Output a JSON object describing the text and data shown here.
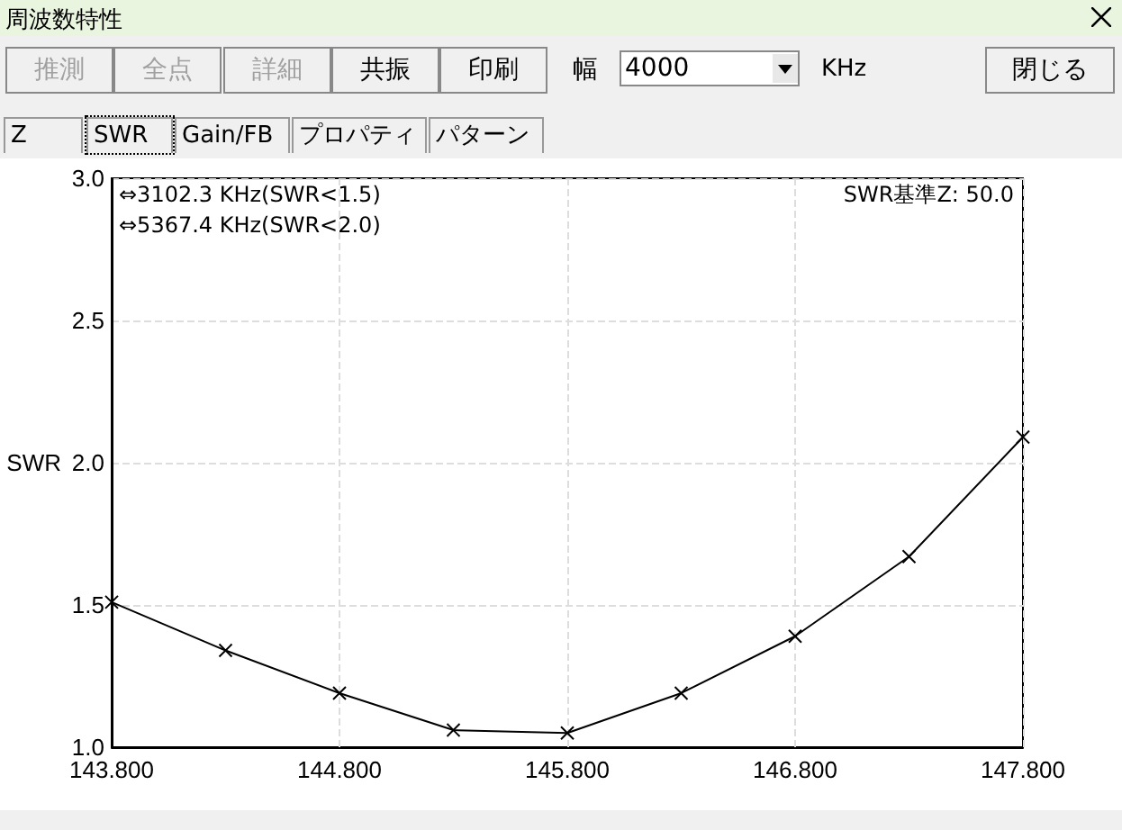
{
  "chart_data": {
    "type": "line",
    "title": "周波数特性",
    "ylabel": "SWR",
    "x": [
      143.8,
      144.3,
      144.8,
      145.3,
      145.8,
      146.3,
      146.8,
      147.3,
      147.8
    ],
    "series": [
      {
        "color": "#000000",
        "values": [
          1.51,
          1.34,
          1.19,
          1.06,
          1.05,
          1.19,
          1.39,
          1.67,
          2.09
        ]
      }
    ],
    "xlim": [
      143.8,
      147.8
    ],
    "xticks": [
      {
        "value": 143.8,
        "label": "143.800"
      },
      {
        "value": 144.8,
        "label": "144.800"
      },
      {
        "value": 145.8,
        "label": "145.800"
      },
      {
        "value": 146.8,
        "label": "146.800"
      },
      {
        "value": 147.8,
        "label": "147.800"
      }
    ],
    "ylim": [
      1.0,
      3.0
    ],
    "yticks": [
      {
        "value": 1.0,
        "label": "1.0"
      },
      {
        "value": 1.5,
        "label": "1.5"
      },
      {
        "value": 2.0,
        "label": "2.0"
      },
      {
        "value": 2.5,
        "label": "2.5"
      },
      {
        "value": 3.0,
        "label": "3.0"
      }
    ],
    "grid": true,
    "marker": "cross",
    "line_style": "solid",
    "annotations": [
      "⇔3102.3 KHz(SWR<1.5)",
      "⇔5367.4 KHz(SWR<2.0)",
      "SWR基準Z: 50.0",
      "推測",
      "全点",
      "詳細",
      "共振",
      "印刷",
      "幅",
      "4000",
      "KHz",
      "閉じる",
      "Z",
      "SWR",
      "Gain/FB",
      "プロパティ",
      "パターン"
    ]
  }
}
